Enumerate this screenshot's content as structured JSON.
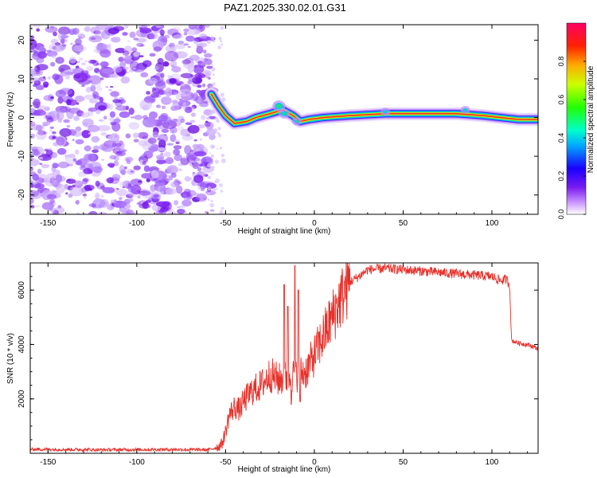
{
  "figure_title": "PAZ1.2025.330.02.01.G31",
  "colors": {
    "snr_line": "#e8302a",
    "axis": "#000000",
    "noise_purple": "#7a1cf0"
  },
  "chart_data": [
    {
      "type": "heatmap",
      "title": "PAZ1.2025.330.02.01.G31",
      "xlabel": "Height of straight line (km)",
      "ylabel": "Frequency (Hz)",
      "xlim": [
        -160,
        126
      ],
      "ylim": [
        -25,
        24
      ],
      "xticks": [
        -150,
        -100,
        -50,
        0,
        50,
        100
      ],
      "yticks": [
        -20,
        -10,
        0,
        10,
        20
      ],
      "ridge": {
        "description": "dominant frequency ridge",
        "points": [
          [
            -58,
            6
          ],
          [
            -54,
            3
          ],
          [
            -50,
            0.5
          ],
          [
            -45,
            -1.5
          ],
          [
            -38,
            -1
          ],
          [
            -33,
            0
          ],
          [
            -25,
            1
          ],
          [
            -18,
            2
          ],
          [
            -12,
            0.5
          ],
          [
            -8,
            -1
          ],
          [
            -3,
            -0.5
          ],
          [
            5,
            0
          ],
          [
            20,
            0.5
          ],
          [
            40,
            1
          ],
          [
            60,
            1
          ],
          [
            80,
            1
          ],
          [
            95,
            0.5
          ],
          [
            105,
            0
          ],
          [
            115,
            -0.5
          ],
          [
            126,
            -0.5
          ]
        ]
      },
      "noise_region": [
        -160,
        -60
      ],
      "colorbar": {
        "label": "Normalized spectral amplitude",
        "range": [
          0.0,
          1.0
        ],
        "ticks": [
          "0.0",
          "0.2",
          "0.4",
          "0.6",
          "0.8"
        ],
        "tick_values": [
          0.0,
          0.2,
          0.4,
          0.6,
          0.8
        ]
      }
    },
    {
      "type": "line",
      "xlabel": "Height of straight line (km)",
      "ylabel": "SNR (10 * v/v)",
      "xlim": [
        -160,
        126
      ],
      "ylim": [
        0,
        7000
      ],
      "xticks": [
        -150,
        -100,
        -50,
        0,
        50,
        100
      ],
      "yticks": [
        2000,
        4000,
        6000
      ],
      "series": [
        {
          "name": "SNR",
          "x": [
            -160,
            -120,
            -80,
            -60,
            -55,
            -52,
            -50,
            -48,
            -45,
            -42,
            -40,
            -35,
            -30,
            -25,
            -20,
            -15,
            -10,
            -5,
            0,
            5,
            10,
            15,
            20,
            25,
            30,
            40,
            50,
            60,
            70,
            80,
            90,
            100,
            105,
            108,
            110,
            111,
            115,
            120,
            126
          ],
          "values": [
            150,
            130,
            140,
            130,
            200,
            350,
            800,
            1400,
            1700,
            1600,
            1900,
            2300,
            2500,
            2900,
            2700,
            2800,
            2900,
            3000,
            3600,
            4300,
            5000,
            5700,
            6300,
            6500,
            6750,
            6800,
            6750,
            6700,
            6650,
            6600,
            6550,
            6500,
            6350,
            6400,
            6200,
            4150,
            4050,
            4000,
            3850
          ],
          "spikes": [
            [
              -17,
              6200
            ],
            [
              -15,
              5400
            ],
            [
              -11,
              6900
            ],
            [
              -9,
              6000
            ],
            [
              -13,
              1800
            ],
            [
              -8,
              1900
            ]
          ]
        }
      ]
    }
  ]
}
